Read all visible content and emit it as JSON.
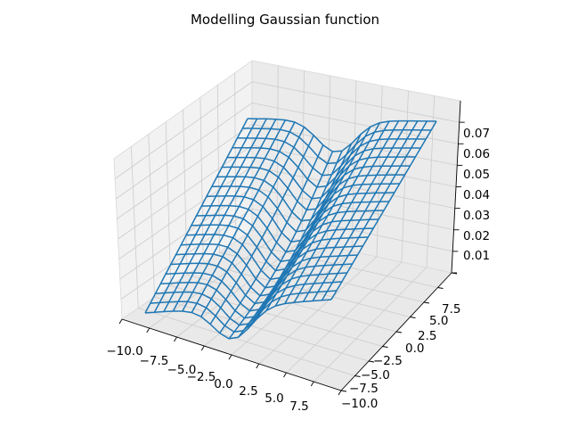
{
  "chart_data": {
    "type": "wireframe",
    "title": "Modelling Gaussian function",
    "xlabel": "",
    "ylabel": "",
    "zlabel": "",
    "grid": true,
    "x_ticks": [
      "−10.0",
      "−7.5",
      "−5.0",
      "−2.5",
      "0.0",
      "2.5",
      "5.0",
      "7.5"
    ],
    "y_ticks": [
      "−10.0",
      "−7.5",
      "−5.0",
      "−2.5",
      "0.0",
      "2.5",
      "5.0",
      "7.5"
    ],
    "z_ticks": [
      "0.01",
      "0.02",
      "0.03",
      "0.04",
      "0.05",
      "0.06",
      "0.07"
    ],
    "x_values": [
      -10,
      9
    ],
    "y_values": [
      -10,
      9
    ],
    "series": [
      {
        "color": "#1f77b4",
        "values": [
          {
            "x": -10,
            "y": -10,
            "z": 0.0
          },
          {
            "x": 9,
            "y": 9,
            "z": 0.073
          },
          {
            "x": 0,
            "y": 0,
            "z": 0.05
          }
        ]
      }
    ]
  }
}
